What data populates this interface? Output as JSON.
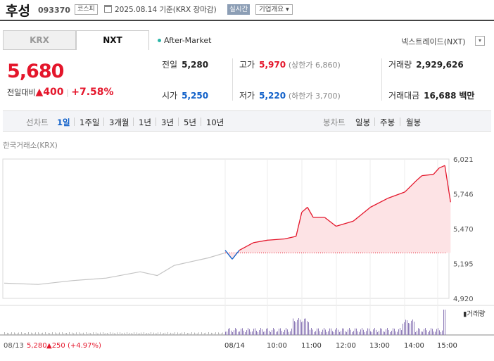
{
  "header": {
    "name": "후성",
    "code": "093370",
    "market": "코스피",
    "date_text": "2025.08.14  기준(KRX 장마감)",
    "realtime": "실시간",
    "company_info": "기업개요"
  },
  "tabs": [
    {
      "label": "KRX",
      "active": false
    },
    {
      "label": "NXT",
      "active": true
    }
  ],
  "after_market_label": "After-Market",
  "nxt_link": "넥스트레이드(NXT)",
  "nxt_link_arrow": "▾",
  "quote": {
    "price": "5,680",
    "change_label": "전일대비",
    "change_arrow": "▲",
    "change_abs": "400",
    "change_pct": "+7.58%",
    "sep": "|"
  },
  "info": {
    "prev_label": "전일",
    "prev_value": "5,280",
    "high_label": "고가",
    "high_value": "5,970",
    "upper_limit": "(상한가 6,860)",
    "volume_label": "거래량",
    "volume_value": "2,929,626",
    "open_label": "시가",
    "open_value": "5,250",
    "low_label": "저가",
    "low_value": "5,220",
    "lower_limit": "(하한가 3,700)",
    "amount_label": "거래대금",
    "amount_value": "16,688",
    "amount_unit": "백만"
  },
  "period_bar": {
    "line_label": "선차트",
    "line_periods": [
      "1일",
      "1주일",
      "3개월",
      "1년",
      "3년",
      "5년",
      "10년"
    ],
    "active_period": "1일",
    "candle_label": "봉차트",
    "candle_periods": [
      "일봉",
      "주봉",
      "월봉"
    ]
  },
  "exchange_label": "한국거래소(KRX)",
  "colors": {
    "up": "#e4162b",
    "down": "#1060c9",
    "prev_day_line": "#c4c4c4",
    "volume": "#8e7bb8",
    "area_fill": "#fde3e5"
  },
  "chart_data": {
    "type": "line",
    "y_ticks": [
      "6,021",
      "5,746",
      "5,470",
      "5,195",
      "4,920"
    ],
    "ylim": [
      4920,
      6021
    ],
    "x_ticks": [
      "08/14",
      "10:00",
      "11:00",
      "12:00",
      "13:00",
      "14:00",
      "15:00"
    ],
    "prev_day": {
      "label": "08/13",
      "close": "5,280",
      "change": "▲250 (+4.97%)"
    },
    "reference_price": 5280,
    "volume_label": "거래량",
    "series": [
      {
        "values": [
          {
            "x": "08/13 09:00",
            "y": 5040
          },
          {
            "x": "08/13 10:00",
            "y": 5030
          },
          {
            "x": "08/13 11:00",
            "y": 5060
          },
          {
            "x": "08/13 12:00",
            "y": 5080
          },
          {
            "x": "08/13 13:00",
            "y": 5130
          },
          {
            "x": "08/13 13:30",
            "y": 5100
          },
          {
            "x": "08/13 14:00",
            "y": 5180
          },
          {
            "x": "08/13 14:30",
            "y": 5210
          },
          {
            "x": "08/13 15:00",
            "y": 5240
          },
          {
            "x": "08/13 15:30",
            "y": 5280
          },
          {
            "x": "08/14 09:00",
            "y": 5300
          },
          {
            "x": "08/14 09:10",
            "y": 5230
          },
          {
            "x": "08/14 09:20",
            "y": 5300
          },
          {
            "x": "08/14 09:30",
            "y": 5330
          },
          {
            "x": "08/14 09:40",
            "y": 5360
          },
          {
            "x": "08/14 10:00",
            "y": 5380
          },
          {
            "x": "08/14 10:30",
            "y": 5390
          },
          {
            "x": "08/14 10:50",
            "y": 5410
          },
          {
            "x": "08/14 11:00",
            "y": 5600
          },
          {
            "x": "08/14 11:10",
            "y": 5640
          },
          {
            "x": "08/14 11:20",
            "y": 5560
          },
          {
            "x": "08/14 11:40",
            "y": 5560
          },
          {
            "x": "08/14 12:00",
            "y": 5490
          },
          {
            "x": "08/14 12:30",
            "y": 5530
          },
          {
            "x": "08/14 13:00",
            "y": 5640
          },
          {
            "x": "08/14 13:30",
            "y": 5710
          },
          {
            "x": "08/14 14:00",
            "y": 5760
          },
          {
            "x": "08/14 14:20",
            "y": 5850
          },
          {
            "x": "08/14 14:30",
            "y": 5890
          },
          {
            "x": "08/14 14:50",
            "y": 5900
          },
          {
            "x": "08/14 15:00",
            "y": 5950
          },
          {
            "x": "08/14 15:10",
            "y": 5970
          },
          {
            "x": "08/14 15:20",
            "y": 5680
          }
        ]
      }
    ]
  }
}
